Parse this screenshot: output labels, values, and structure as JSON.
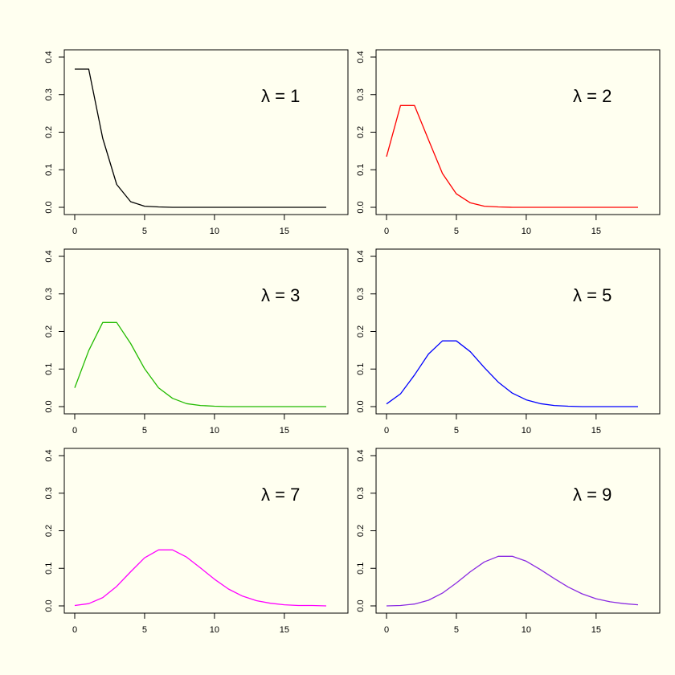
{
  "chart_data": [
    {
      "type": "line",
      "label": "λ = 1",
      "color": "#000000",
      "x": [
        0,
        1,
        2,
        3,
        4,
        5,
        6,
        7,
        8,
        9,
        10,
        11,
        12,
        13,
        14,
        15,
        16,
        17,
        18
      ],
      "y": [
        0.368,
        0.368,
        0.184,
        0.061,
        0.015,
        0.003,
        0.001,
        0.0,
        0.0,
        0.0,
        0.0,
        0.0,
        0.0,
        0.0,
        0.0,
        0.0,
        0.0,
        0.0,
        0.0
      ],
      "xlim": [
        0,
        18
      ],
      "ylim": [
        0,
        0.4
      ],
      "xticks": [
        "0",
        "5",
        "10",
        "15"
      ],
      "yticks": [
        "0.0",
        "0.1",
        "0.2",
        "0.3",
        "0.4"
      ]
    },
    {
      "type": "line",
      "label": "λ = 2",
      "color": "#ff0000",
      "x": [
        0,
        1,
        2,
        3,
        4,
        5,
        6,
        7,
        8,
        9,
        10,
        11,
        12,
        13,
        14,
        15,
        16,
        17,
        18
      ],
      "y": [
        0.135,
        0.271,
        0.271,
        0.18,
        0.09,
        0.036,
        0.012,
        0.003,
        0.001,
        0.0,
        0.0,
        0.0,
        0.0,
        0.0,
        0.0,
        0.0,
        0.0,
        0.0,
        0.0
      ],
      "xlim": [
        0,
        18
      ],
      "ylim": [
        0,
        0.4
      ],
      "xticks": [
        "0",
        "5",
        "10",
        "15"
      ],
      "yticks": [
        "0.0",
        "0.1",
        "0.2",
        "0.3",
        "0.4"
      ]
    },
    {
      "type": "line",
      "label": "λ = 3",
      "color": "#22bb00",
      "x": [
        0,
        1,
        2,
        3,
        4,
        5,
        6,
        7,
        8,
        9,
        10,
        11,
        12,
        13,
        14,
        15,
        16,
        17,
        18
      ],
      "y": [
        0.05,
        0.149,
        0.224,
        0.224,
        0.168,
        0.101,
        0.05,
        0.022,
        0.008,
        0.003,
        0.001,
        0.0,
        0.0,
        0.0,
        0.0,
        0.0,
        0.0,
        0.0,
        0.0
      ],
      "xlim": [
        0,
        18
      ],
      "ylim": [
        0,
        0.4
      ],
      "xticks": [
        "0",
        "5",
        "10",
        "15"
      ],
      "yticks": [
        "0.0",
        "0.1",
        "0.2",
        "0.3",
        "0.4"
      ]
    },
    {
      "type": "line",
      "label": "λ = 5",
      "color": "#0000ff",
      "x": [
        0,
        1,
        2,
        3,
        4,
        5,
        6,
        7,
        8,
        9,
        10,
        11,
        12,
        13,
        14,
        15,
        16,
        17,
        18
      ],
      "y": [
        0.007,
        0.034,
        0.084,
        0.14,
        0.175,
        0.175,
        0.146,
        0.104,
        0.065,
        0.036,
        0.018,
        0.008,
        0.003,
        0.001,
        0.0,
        0.0,
        0.0,
        0.0,
        0.0
      ],
      "xlim": [
        0,
        18
      ],
      "ylim": [
        0,
        0.4
      ],
      "xticks": [
        "0",
        "5",
        "10",
        "15"
      ],
      "yticks": [
        "0.0",
        "0.1",
        "0.2",
        "0.3",
        "0.4"
      ]
    },
    {
      "type": "line",
      "label": "λ = 7",
      "color": "#ff00ff",
      "x": [
        0,
        1,
        2,
        3,
        4,
        5,
        6,
        7,
        8,
        9,
        10,
        11,
        12,
        13,
        14,
        15,
        16,
        17,
        18
      ],
      "y": [
        0.001,
        0.006,
        0.022,
        0.052,
        0.091,
        0.128,
        0.149,
        0.149,
        0.13,
        0.101,
        0.071,
        0.045,
        0.026,
        0.014,
        0.007,
        0.003,
        0.001,
        0.001,
        0.0
      ],
      "xlim": [
        0,
        18
      ],
      "ylim": [
        0,
        0.4
      ],
      "xticks": [
        "0",
        "5",
        "10",
        "15"
      ],
      "yticks": [
        "0.0",
        "0.1",
        "0.2",
        "0.3",
        "0.4"
      ]
    },
    {
      "type": "line",
      "label": "λ = 9",
      "color": "#8a2be2",
      "x": [
        0,
        1,
        2,
        3,
        4,
        5,
        6,
        7,
        8,
        9,
        10,
        11,
        12,
        13,
        14,
        15,
        16,
        17,
        18
      ],
      "y": [
        0.0,
        0.001,
        0.005,
        0.015,
        0.034,
        0.061,
        0.091,
        0.117,
        0.132,
        0.132,
        0.119,
        0.097,
        0.073,
        0.05,
        0.032,
        0.019,
        0.011,
        0.006,
        0.003
      ],
      "xlim": [
        0,
        18
      ],
      "ylim": [
        0,
        0.4
      ],
      "xticks": [
        "0",
        "5",
        "10",
        "15"
      ],
      "yticks": [
        "0.0",
        "0.1",
        "0.2",
        "0.3",
        "0.4"
      ]
    }
  ]
}
